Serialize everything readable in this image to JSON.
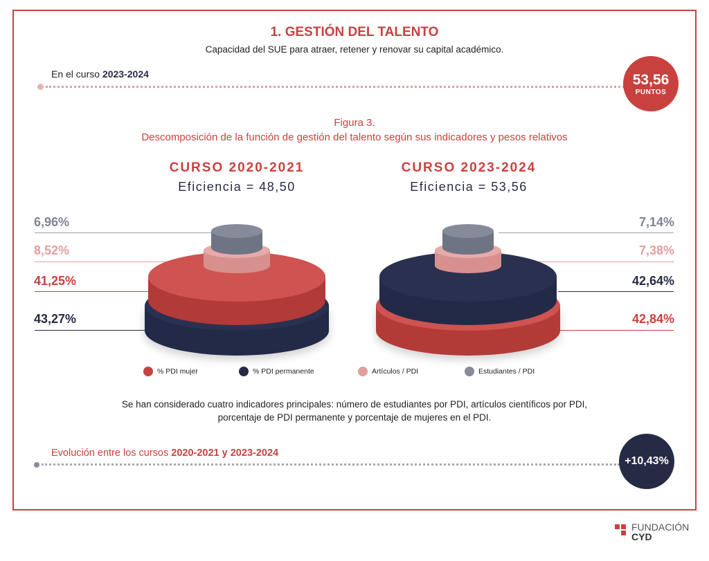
{
  "header": {
    "title": "1. GESTIÓN DEL TALENTO",
    "subtitle": "Capacidad del SUE para atraer, retener y renovar su capital académico.",
    "curso_prefix": "En el curso ",
    "curso": "2023-2024",
    "score": "53,56",
    "score_unit": "PUNTOS"
  },
  "figure": {
    "label": "Figura 3.",
    "title": "Descomposición de la función de gestión del talento según sus indicadores y pesos relativos"
  },
  "chart_data": [
    {
      "type": "stacked-cylinder",
      "title": "CURSO 2020-2021",
      "subtitle": "Eficiencia = 48,50",
      "efficiency": 48.5,
      "series": [
        {
          "name": "Estudiantes / PDI",
          "value": 6.96,
          "label": "6,96%"
        },
        {
          "name": "Artículos / PDI",
          "value": 8.52,
          "label": "8,52%"
        },
        {
          "name": "% PDI mujer",
          "value": 41.25,
          "label": "41,25%"
        },
        {
          "name": "% PDI permanente",
          "value": 43.27,
          "label": "43,27%"
        }
      ]
    },
    {
      "type": "stacked-cylinder",
      "title": "CURSO 2023-2024",
      "subtitle": "Eficiencia = 53,56",
      "efficiency": 53.56,
      "series": [
        {
          "name": "Estudiantes / PDI",
          "value": 7.14,
          "label": "7,14%"
        },
        {
          "name": "Artículos / PDI",
          "value": 7.38,
          "label": "7,38%"
        },
        {
          "name": "% PDI permanente",
          "value": 42.64,
          "label": "42,64%"
        },
        {
          "name": "% PDI mujer",
          "value": 42.84,
          "label": "42,84%"
        }
      ]
    }
  ],
  "legend": [
    {
      "label": "% PDI mujer",
      "color": "#c8413f"
    },
    {
      "label": "% PDI permanente",
      "color": "#262b45"
    },
    {
      "label": "Artículos / PDI",
      "color": "#e09f9d"
    },
    {
      "label": "Estudiantes / PDI",
      "color": "#868b99"
    }
  ],
  "note": [
    "Se han considerado cuatro indicadores principales: número de estudiantes por PDI, artículos científicos por PDI,",
    "porcentaje de PDI permanente y porcentaje de mujeres en el PDI."
  ],
  "evolution": {
    "prefix": "Evolución entre los cursos ",
    "years": "2020-2021 y 2023-2024",
    "value": "+10,43%"
  },
  "logo": {
    "line1": "FUNDACIÓN",
    "line2": "CYD"
  }
}
